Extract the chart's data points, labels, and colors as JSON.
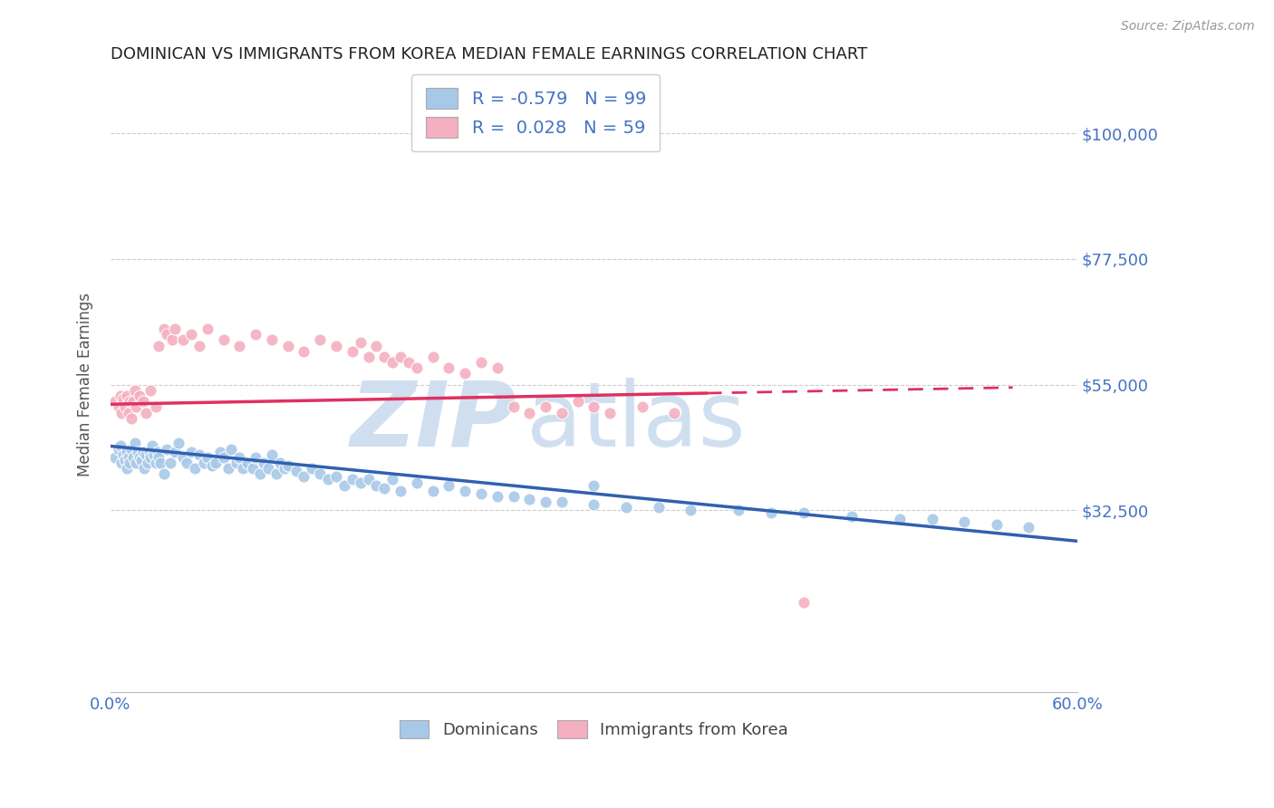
{
  "title": "DOMINICAN VS IMMIGRANTS FROM KOREA MEDIAN FEMALE EARNINGS CORRELATION CHART",
  "source": "Source: ZipAtlas.com",
  "ylabel": "Median Female Earnings",
  "xlim": [
    0.0,
    0.6
  ],
  "ylim": [
    0,
    110000
  ],
  "yticks": [
    0,
    32500,
    55000,
    77500,
    100000
  ],
  "ytick_labels": [
    "",
    "$32,500",
    "$55,000",
    "$77,500",
    "$100,000"
  ],
  "xticks": [
    0.0,
    0.1,
    0.2,
    0.3,
    0.4,
    0.5,
    0.6
  ],
  "blue_R": -0.579,
  "blue_N": 99,
  "pink_R": 0.028,
  "pink_N": 59,
  "blue_color": "#a8c8e8",
  "pink_color": "#f4b0c0",
  "blue_line_color": "#3060b0",
  "pink_line_color": "#e03060",
  "title_color": "#222222",
  "label_color": "#4472c4",
  "watermark_color": "#d0dff0",
  "background_color": "#ffffff",
  "grid_color": "#cccccc",
  "blue_scatter_x": [
    0.003,
    0.005,
    0.006,
    0.007,
    0.008,
    0.009,
    0.01,
    0.01,
    0.011,
    0.012,
    0.013,
    0.014,
    0.015,
    0.016,
    0.017,
    0.018,
    0.019,
    0.02,
    0.021,
    0.022,
    0.023,
    0.024,
    0.025,
    0.026,
    0.027,
    0.028,
    0.029,
    0.03,
    0.031,
    0.033,
    0.035,
    0.037,
    0.04,
    0.042,
    0.045,
    0.047,
    0.05,
    0.052,
    0.055,
    0.058,
    0.06,
    0.063,
    0.065,
    0.068,
    0.07,
    0.073,
    0.075,
    0.078,
    0.08,
    0.082,
    0.085,
    0.088,
    0.09,
    0.093,
    0.095,
    0.098,
    0.1,
    0.103,
    0.105,
    0.108,
    0.11,
    0.115,
    0.12,
    0.125,
    0.13,
    0.135,
    0.14,
    0.145,
    0.15,
    0.155,
    0.16,
    0.165,
    0.17,
    0.175,
    0.18,
    0.19,
    0.2,
    0.21,
    0.22,
    0.23,
    0.24,
    0.25,
    0.26,
    0.27,
    0.28,
    0.3,
    0.32,
    0.34,
    0.36,
    0.39,
    0.41,
    0.43,
    0.46,
    0.49,
    0.51,
    0.53,
    0.55,
    0.57,
    0.3
  ],
  "blue_scatter_y": [
    42000,
    43500,
    44000,
    41000,
    42500,
    41500,
    43000,
    40000,
    42000,
    41000,
    43500,
    42000,
    44500,
    41000,
    43000,
    42000,
    41500,
    43000,
    40000,
    42500,
    41000,
    43000,
    42000,
    44000,
    42500,
    41000,
    43000,
    42000,
    41000,
    39000,
    43500,
    41000,
    43000,
    44500,
    42000,
    41000,
    43000,
    40000,
    42500,
    41000,
    42000,
    40500,
    41000,
    43000,
    42000,
    40000,
    43500,
    41000,
    42000,
    40000,
    41000,
    40000,
    42000,
    39000,
    41000,
    40000,
    42500,
    39000,
    41000,
    40000,
    40500,
    39500,
    38500,
    40000,
    39000,
    38000,
    38500,
    37000,
    38000,
    37500,
    38000,
    37000,
    36500,
    38000,
    36000,
    37500,
    36000,
    37000,
    36000,
    35500,
    35000,
    35000,
    34500,
    34000,
    34000,
    33500,
    33000,
    33000,
    32500,
    32500,
    32000,
    32000,
    31500,
    31000,
    31000,
    30500,
    30000,
    29500,
    37000
  ],
  "pink_scatter_x": [
    0.003,
    0.005,
    0.006,
    0.007,
    0.008,
    0.009,
    0.01,
    0.011,
    0.012,
    0.013,
    0.014,
    0.015,
    0.016,
    0.018,
    0.02,
    0.022,
    0.025,
    0.028,
    0.03,
    0.033,
    0.035,
    0.038,
    0.04,
    0.045,
    0.05,
    0.055,
    0.06,
    0.07,
    0.08,
    0.09,
    0.1,
    0.11,
    0.12,
    0.13,
    0.14,
    0.15,
    0.155,
    0.16,
    0.165,
    0.17,
    0.175,
    0.18,
    0.185,
    0.19,
    0.2,
    0.21,
    0.22,
    0.23,
    0.24,
    0.25,
    0.26,
    0.27,
    0.28,
    0.29,
    0.3,
    0.31,
    0.33,
    0.35,
    0.43
  ],
  "pink_scatter_y": [
    52000,
    51000,
    53000,
    50000,
    52500,
    51000,
    53000,
    50000,
    52000,
    49000,
    52000,
    54000,
    51000,
    53000,
    52000,
    50000,
    54000,
    51000,
    62000,
    65000,
    64000,
    63000,
    65000,
    63000,
    64000,
    62000,
    65000,
    63000,
    62000,
    64000,
    63000,
    62000,
    61000,
    63000,
    62000,
    61000,
    62500,
    60000,
    62000,
    60000,
    59000,
    60000,
    59000,
    58000,
    60000,
    58000,
    57000,
    59000,
    58000,
    51000,
    50000,
    51000,
    50000,
    52000,
    51000,
    50000,
    51000,
    50000,
    16000
  ],
  "blue_trend_x": [
    0.0,
    0.6
  ],
  "blue_trend_y": [
    44000,
    27000
  ],
  "pink_trend_x": [
    0.0,
    0.56
  ],
  "pink_trend_y": [
    51500,
    54500
  ]
}
